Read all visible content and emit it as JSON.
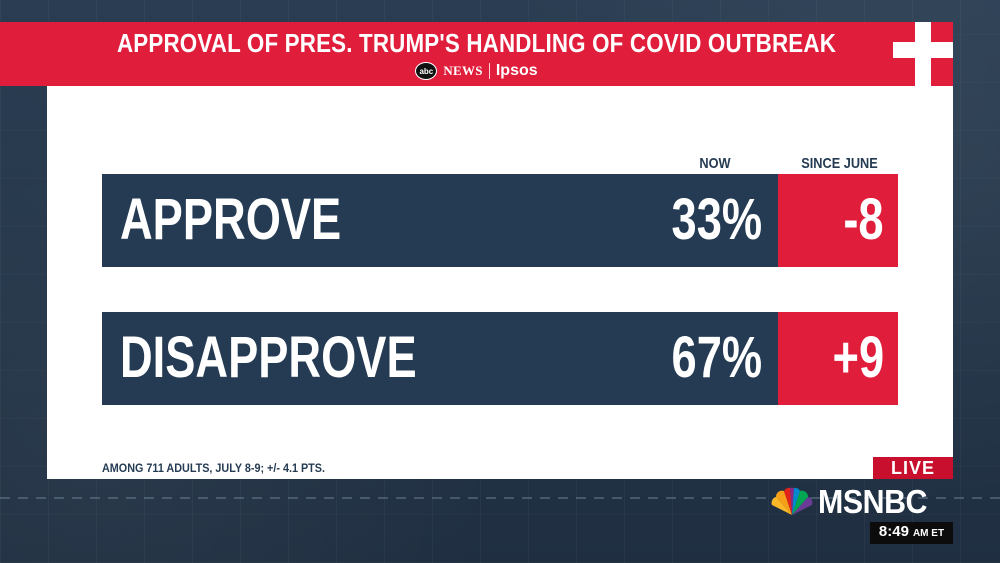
{
  "header": {
    "title": "APPROVAL OF PRES. TRUMP'S HANDLING OF COVID OUTBREAK",
    "source_network": "NEWS",
    "source_network_logo": "abc",
    "source_pollster": "Ipsos"
  },
  "columns": {
    "now": "NOW",
    "since": "SINCE JUNE"
  },
  "rows": [
    {
      "label": "APPROVE",
      "value": "33%",
      "change": "-8"
    },
    {
      "label": "DISAPPROVE",
      "value": "67%",
      "change": "+9"
    }
  ],
  "footnote": "AMONG 711 ADULTS, JULY 8-9; +/- 4.1 PTS.",
  "broadcast": {
    "live_label": "LIVE",
    "network": "MSNBC",
    "time": "8:49",
    "zone": "AM ET"
  },
  "icons": {
    "medical_cross": "cross-icon",
    "network_logo": "peacock-icon"
  },
  "colors": {
    "accent_red": "#e01e3c",
    "navy": "#253b53",
    "background": "#233447"
  }
}
